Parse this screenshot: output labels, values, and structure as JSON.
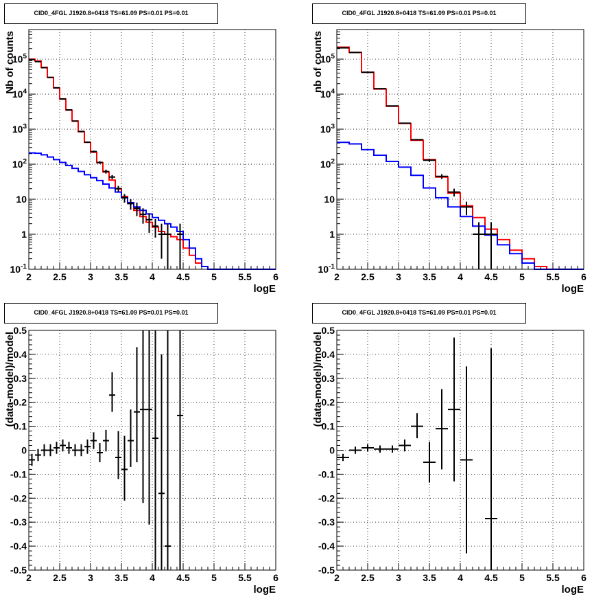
{
  "chart_data": [
    {
      "type": "line",
      "title": "CID0_4FGL J1920.8+0418 TS=61.09 PS=0.01 PS=0.01",
      "xlabel": "logE",
      "ylabel": "Nb of counts",
      "xlim": [
        2,
        6
      ],
      "ylim": [
        0.1,
        700000
      ],
      "yscale": "log",
      "grid": true,
      "x_ticks": [
        2,
        2.5,
        3,
        3.5,
        4,
        4.5,
        5,
        5.5,
        6
      ],
      "x_tick_labels": [
        "2",
        "2.5",
        "3",
        "3.5",
        "4",
        "4.5",
        "5",
        "5.5",
        "6"
      ],
      "y_ticks": [
        0.1,
        1,
        10,
        100,
        1000,
        10000,
        100000
      ],
      "y_tick_labels": [
        "10^-1",
        "1",
        "10",
        "10^2",
        "10^3",
        "10^4",
        "10^5"
      ],
      "bin_width": 0.1,
      "bin_starts": [
        2.0,
        2.1,
        2.2,
        2.3,
        2.4,
        2.5,
        2.6,
        2.7,
        2.8,
        2.9,
        3.0,
        3.1,
        3.2,
        3.3,
        3.4,
        3.5,
        3.6,
        3.7,
        3.8,
        3.9,
        4.0,
        4.1,
        4.2,
        4.3,
        4.4,
        4.5,
        4.6,
        4.7,
        4.8,
        4.9,
        5.0,
        5.1,
        5.2,
        5.3,
        5.4,
        5.5,
        5.6,
        5.7,
        5.8,
        5.9
      ],
      "series": [
        {
          "color": "#ff0000",
          "values": [
            100000,
            88000,
            58000,
            30000,
            15000,
            7200,
            3500,
            1700,
            850,
            420,
            220,
            110,
            60,
            35,
            20,
            12,
            7.5,
            4.8,
            3.2,
            2.2,
            1.6,
            1.2,
            1.0,
            0.85,
            0.7,
            0.4,
            0.25,
            0.15,
            0.12,
            0.1,
            0.1,
            0.1,
            0.1,
            0.1,
            0.1,
            0.1,
            0.1,
            0.1,
            0.1,
            0.1
          ]
        },
        {
          "color": "#0000ff",
          "values": [
            210,
            205,
            185,
            160,
            135,
            112,
            92,
            76,
            62,
            50,
            41,
            34,
            27,
            21,
            16,
            11,
            8,
            6,
            4.8,
            3.8,
            3.0,
            2.5,
            2.0,
            1.6,
            1.2,
            0.7,
            0.4,
            0.2,
            0.12,
            0.1,
            0.1,
            0.1,
            0.1,
            0.1,
            0.1,
            0.1,
            0.1,
            0.1,
            0.1,
            0.1
          ]
        }
      ],
      "points": {
        "color": "#000000",
        "x": [
          2.05,
          2.15,
          2.25,
          2.35,
          2.45,
          2.55,
          2.65,
          2.75,
          2.85,
          2.95,
          3.05,
          3.15,
          3.25,
          3.35,
          3.45,
          3.55,
          3.65,
          3.75,
          3.85,
          3.95,
          4.05,
          4.15,
          4.25,
          4.45
        ],
        "y": [
          97000,
          85000,
          57000,
          30000,
          15200,
          7300,
          3550,
          1700,
          860,
          425,
          230,
          112,
          62,
          43,
          20,
          11,
          7.5,
          5.5,
          3.7,
          2.6,
          1.7,
          1.0,
          1.0,
          1.0
        ],
        "ylow": [
          96000,
          84000,
          56500,
          29700,
          15000,
          7200,
          3500,
          1660,
          830,
          405,
          215,
          102,
          54,
          37,
          16,
          8,
          5,
          3.3,
          2.0,
          1.1,
          0.8,
          0.2,
          0.1,
          0.1
        ],
        "yhigh": [
          98000,
          86000,
          57500,
          30300,
          15400,
          7400,
          3600,
          1740,
          890,
          445,
          245,
          122,
          70,
          49,
          24,
          14,
          10,
          8,
          5.5,
          4,
          2.7,
          2.0,
          2.0,
          2.0
        ],
        "xerr": 0.05
      }
    },
    {
      "type": "line",
      "title": "CID0_4FGL J1920.8+0418 TS=61.09 PS=0.01 PS=0.01",
      "xlabel": "logE",
      "ylabel": "nb of counts",
      "xlim": [
        2,
        6
      ],
      "ylim": [
        0.1,
        700000
      ],
      "yscale": "log",
      "grid": true,
      "x_ticks": [
        2,
        2.5,
        3,
        3.5,
        4,
        4.5,
        5,
        5.5,
        6
      ],
      "x_tick_labels": [
        "2",
        "2.5",
        "3",
        "3.5",
        "4",
        "4.5",
        "5",
        "5.5",
        "6"
      ],
      "y_ticks": [
        0.1,
        1,
        10,
        100,
        1000,
        10000,
        100000
      ],
      "y_tick_labels": [
        "10^-1",
        "1",
        "10",
        "10^2",
        "10^3",
        "10^4",
        "10^5"
      ],
      "bin_width": 0.2,
      "bin_starts": [
        2.0,
        2.2,
        2.4,
        2.6,
        2.8,
        3.0,
        3.2,
        3.4,
        3.6,
        3.8,
        4.0,
        4.2,
        4.4,
        4.6,
        4.8,
        5.0,
        5.2,
        5.4,
        5.6,
        5.8
      ],
      "series": [
        {
          "color": "#ff0000",
          "values": [
            220000,
            155000,
            42000,
            14000,
            4500,
            1450,
            480,
            135,
            43,
            15,
            6.5,
            3.0,
            1.4,
            0.7,
            0.35,
            0.2,
            0.12,
            0.1,
            0.1,
            0.1
          ]
        },
        {
          "color": "#0000ff",
          "values": [
            420,
            380,
            260,
            180,
            120,
            82,
            48,
            21,
            11,
            6,
            3.2,
            1.7,
            0.95,
            0.5,
            0.28,
            0.15,
            0.1,
            0.1,
            0.1,
            0.1
          ]
        }
      ],
      "points": {
        "color": "#000000",
        "x": [
          2.1,
          2.3,
          2.5,
          2.7,
          2.9,
          3.1,
          3.3,
          3.5,
          3.7,
          3.9,
          4.1,
          4.3,
          4.5
        ],
        "y": [
          210000,
          155000,
          42000,
          14300,
          4600,
          1480,
          500,
          130,
          45,
          16,
          6,
          1,
          1
        ],
        "ylow": [
          209000,
          154000,
          41800,
          14100,
          4530,
          1440,
          478,
          118,
          38,
          12,
          3.5,
          0.1,
          0.1
        ],
        "yhigh": [
          211000,
          156000,
          42200,
          14500,
          4670,
          1520,
          522,
          142,
          52,
          20,
          8.5,
          2.2,
          2.2
        ],
        "xerr": 0.1
      }
    },
    {
      "type": "scatter",
      "title": "CID0_4FGL J1920.8+0418 TS=61.09 PS=0.01 PS=0.01",
      "xlabel": "logE",
      "ylabel": "(data-model)/model",
      "xlim": [
        2,
        6
      ],
      "ylim": [
        -0.5,
        0.5
      ],
      "grid": true,
      "x_ticks": [
        2,
        2.5,
        3,
        3.5,
        4,
        4.5,
        5,
        5.5,
        6
      ],
      "x_tick_labels": [
        "2",
        "2.5",
        "3",
        "3.5",
        "4",
        "4.5",
        "5",
        "5.5",
        "6"
      ],
      "y_ticks": [
        -0.5,
        -0.4,
        -0.3,
        -0.2,
        -0.1,
        0,
        0.1,
        0.2,
        0.3,
        0.4,
        0.5
      ],
      "y_tick_labels": [
        "-0.5",
        "-0.4",
        "-0.3",
        "-0.2",
        "-0.1",
        "0",
        "0.1",
        "0.2",
        "0.3",
        "0.4",
        "0.5"
      ],
      "points": {
        "color": "#000000",
        "x": [
          2.05,
          2.15,
          2.25,
          2.35,
          2.45,
          2.55,
          2.65,
          2.75,
          2.85,
          2.95,
          3.05,
          3.15,
          3.25,
          3.35,
          3.45,
          3.55,
          3.65,
          3.75,
          3.85,
          3.95,
          4.05,
          4.15,
          4.25,
          4.45
        ],
        "y": [
          -0.04,
          -0.02,
          0.0,
          0.0,
          0.01,
          0.02,
          0.01,
          0.0,
          0.0,
          0.015,
          0.04,
          -0.01,
          0.04,
          0.23,
          -0.03,
          -0.08,
          0.04,
          0.16,
          0.17,
          0.17,
          0.05,
          -0.18,
          -0.4,
          0.145
        ],
        "ylow": [
          -0.065,
          -0.045,
          -0.025,
          -0.025,
          -0.015,
          -0.005,
          -0.015,
          -0.025,
          -0.025,
          -0.015,
          0.005,
          -0.05,
          -0.005,
          0.16,
          -0.12,
          -0.21,
          -0.07,
          -0.05,
          -0.22,
          -0.31,
          -0.5,
          -0.5,
          -0.5,
          -0.5
        ],
        "yhigh": [
          -0.015,
          0.005,
          0.025,
          0.025,
          0.035,
          0.045,
          0.035,
          0.025,
          0.025,
          0.045,
          0.075,
          0.03,
          0.085,
          0.325,
          0.08,
          0.06,
          0.17,
          0.43,
          0.5,
          0.5,
          0.5,
          0.4,
          0.5,
          0.5
        ],
        "xerr": 0.05
      }
    },
    {
      "type": "scatter",
      "title": "CID0_4FGL J1920.8+0418 TS=61.09 PS=0.01 PS=0.01",
      "xlabel": "logE",
      "ylabel": "(data-model)/model",
      "xlim": [
        2,
        6
      ],
      "ylim": [
        -0.5,
        0.5
      ],
      "grid": true,
      "x_ticks": [
        2,
        2.5,
        3,
        3.5,
        4,
        4.5,
        5,
        5.5,
        6
      ],
      "x_tick_labels": [
        "2",
        "2.5",
        "3",
        "3.5",
        "4",
        "4.5",
        "5",
        "5.5",
        "6"
      ],
      "y_ticks": [
        -0.5,
        -0.4,
        -0.3,
        -0.2,
        -0.1,
        0,
        0.1,
        0.2,
        0.3,
        0.4,
        0.5
      ],
      "y_tick_labels": [
        "-0.5",
        "-0.4",
        "-0.3",
        "-0.2",
        "-0.1",
        "0",
        "0.1",
        "0.2",
        "0.3",
        "0.4",
        "0.5"
      ],
      "points": {
        "color": "#000000",
        "x": [
          2.1,
          2.3,
          2.5,
          2.7,
          2.9,
          3.1,
          3.3,
          3.5,
          3.7,
          3.9,
          4.1,
          4.5
        ],
        "y": [
          -0.03,
          0.0,
          0.01,
          0.005,
          0.005,
          0.02,
          0.1,
          -0.05,
          0.09,
          0.17,
          -0.04,
          -0.285
        ],
        "ylow": [
          -0.045,
          -0.015,
          -0.005,
          -0.01,
          -0.01,
          -0.005,
          0.05,
          -0.135,
          -0.08,
          -0.13,
          -0.43,
          -0.5
        ],
        "yhigh": [
          -0.015,
          0.015,
          0.025,
          0.02,
          0.02,
          0.045,
          0.155,
          0.035,
          0.255,
          0.47,
          0.35,
          0.425
        ],
        "xerr": 0.1
      }
    }
  ]
}
